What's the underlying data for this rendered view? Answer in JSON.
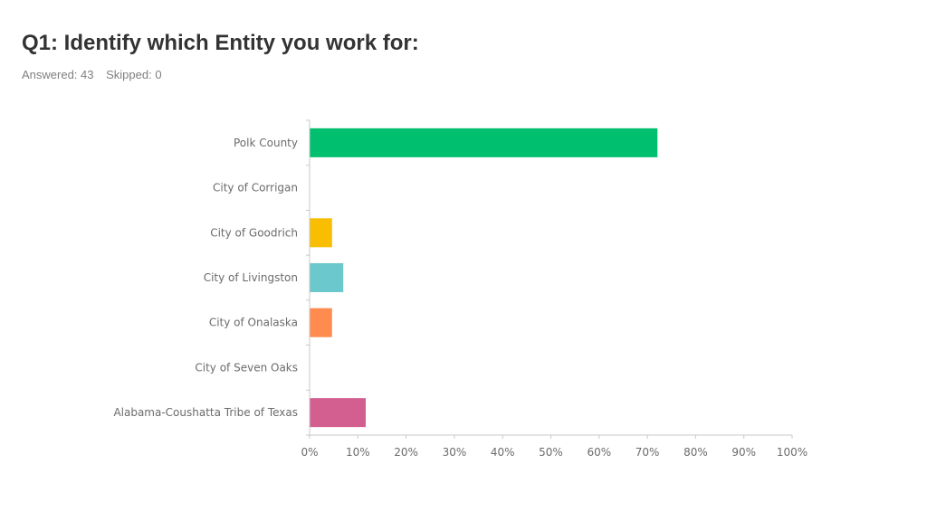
{
  "header": {
    "title": "Q1: Identify which Entity you work for:",
    "answered": "Answered: 43",
    "skipped": "Skipped: 0"
  },
  "chart_data": {
    "type": "bar",
    "orientation": "horizontal",
    "categories": [
      "Polk County",
      "City of Corrigan",
      "City of Goodrich",
      "City of Livingston",
      "City of Onalaska",
      "City of Seven Oaks",
      "Alabama-Coushatta Tribe of Texas"
    ],
    "values": [
      72.09,
      0,
      4.65,
      6.98,
      4.65,
      0,
      11.63
    ],
    "colors": [
      "#00bf6f",
      "#6bc8cd",
      "#f9be00",
      "#6bc8cd",
      "#ff8b4f",
      "#7d7d7d",
      "#d25f90"
    ],
    "x_ticks": [
      "0%",
      "10%",
      "20%",
      "30%",
      "40%",
      "50%",
      "60%",
      "70%",
      "80%",
      "90%",
      "100%"
    ],
    "xlim": [
      0,
      100
    ],
    "grid": false,
    "legend": "none"
  }
}
